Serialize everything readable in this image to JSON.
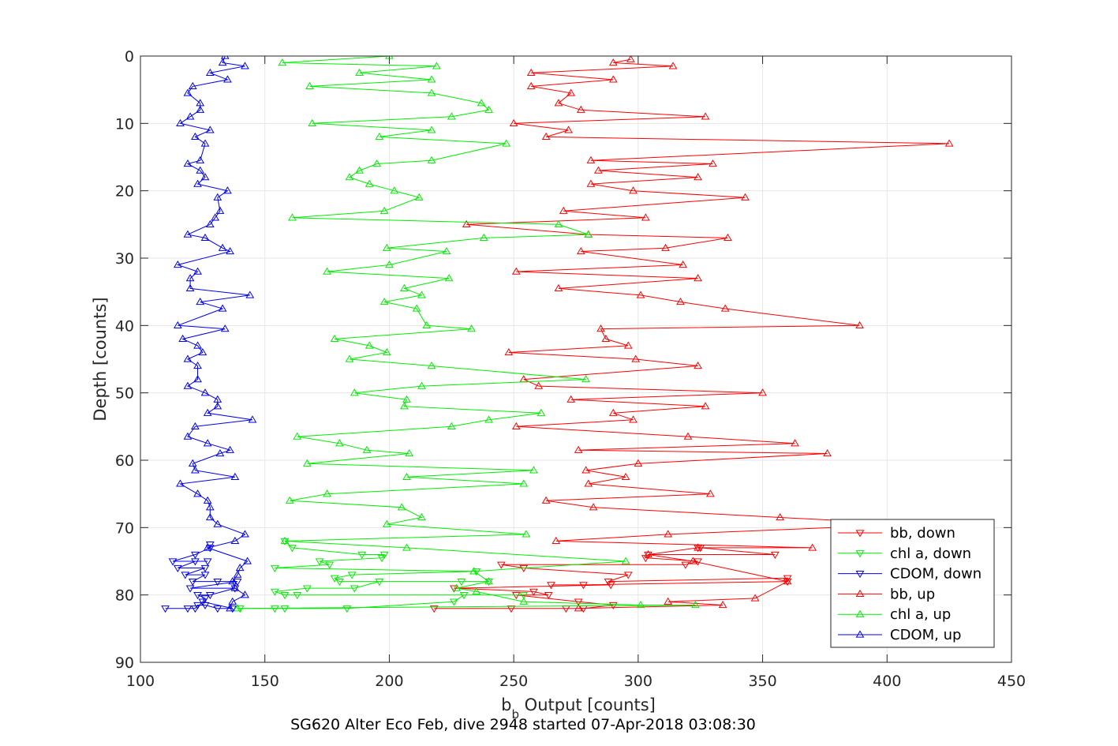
{
  "chart_data": {
    "type": "line",
    "xlabel_main": "b",
    "xlabel_sub": "b",
    "xlabel_rest": " Output [counts]",
    "ylabel": "Depth [counts]",
    "footer": "SG620 Alter Eco Feb, dive 2948 started 07-Apr-2018 03:08:30",
    "xlim": [
      100,
      450
    ],
    "ylim": [
      0,
      90
    ],
    "y_reversed": true,
    "grid": true,
    "legend_position": "lower-right",
    "x_ticks": [
      "100",
      "150",
      "200",
      "250",
      "300",
      "350",
      "400",
      "450"
    ],
    "y_ticks": [
      "0",
      "10",
      "20",
      "30",
      "40",
      "50",
      "60",
      "70",
      "80",
      "90"
    ],
    "series": [
      {
        "name": "bb, down",
        "color": "#ff0000",
        "marker": "triangle-down",
        "points": [
          [
            218,
            82
          ],
          [
            249,
            82
          ],
          [
            271,
            82
          ],
          [
            278,
            82
          ],
          [
            290,
            81.5
          ],
          [
            276,
            81
          ],
          [
            251,
            80
          ],
          [
            264,
            80
          ],
          [
            258,
            79.5
          ],
          [
            226,
            79
          ],
          [
            289,
            78.5
          ],
          [
            265,
            78.5
          ],
          [
            278,
            78.5
          ],
          [
            360,
            78
          ],
          [
            360,
            77.5
          ],
          [
            288,
            78
          ],
          [
            296,
            77
          ],
          [
            254,
            76
          ],
          [
            245,
            75.5
          ],
          [
            319,
            75.5
          ],
          [
            324,
            75
          ],
          [
            303,
            74.5
          ],
          [
            304,
            74
          ],
          [
            355,
            74
          ],
          [
            325,
            73
          ],
          [
            324,
            73
          ]
        ]
      },
      {
        "name": "chl a, down",
        "color": "#00ee00",
        "marker": "triangle-down",
        "points": [
          [
            140,
            82
          ],
          [
            154,
            82
          ],
          [
            158,
            82
          ],
          [
            183,
            82
          ],
          [
            226,
            81
          ],
          [
            230,
            80
          ],
          [
            254,
            80
          ],
          [
            163,
            80
          ],
          [
            158,
            80
          ],
          [
            154,
            79.5
          ],
          [
            167,
            79
          ],
          [
            186,
            79
          ],
          [
            196,
            78
          ],
          [
            229,
            78
          ],
          [
            240,
            78
          ],
          [
            180,
            78
          ],
          [
            178,
            77.5
          ],
          [
            185,
            77
          ],
          [
            235,
            76.5
          ],
          [
            154,
            76
          ],
          [
            176,
            75.5
          ],
          [
            172,
            75
          ],
          [
            197,
            74.5
          ],
          [
            198,
            74
          ],
          [
            189,
            74
          ],
          [
            161,
            73
          ],
          [
            158,
            72
          ]
        ]
      },
      {
        "name": "CDOM, down",
        "color": "#0000ee",
        "marker": "triangle-down",
        "points": [
          [
            110,
            82
          ],
          [
            119,
            82
          ],
          [
            122,
            82
          ],
          [
            123,
            81.5
          ],
          [
            126,
            81.5
          ],
          [
            131,
            82
          ],
          [
            137,
            82
          ],
          [
            125,
            81
          ],
          [
            126,
            80.5
          ],
          [
            123,
            80
          ],
          [
            128,
            80
          ],
          [
            138,
            79
          ],
          [
            120,
            79
          ],
          [
            139,
            78
          ],
          [
            131,
            78
          ],
          [
            121,
            78
          ],
          [
            126,
            77
          ],
          [
            118,
            77
          ],
          [
            126,
            76
          ],
          [
            115,
            76
          ],
          [
            122,
            75
          ],
          [
            127,
            75
          ],
          [
            113,
            75
          ],
          [
            122,
            74
          ],
          [
            128,
            73
          ],
          [
            128,
            72.5
          ]
        ]
      },
      {
        "name": "bb, up",
        "color": "#ff0000",
        "marker": "triangle-up",
        "points": [
          [
            297,
            0.5
          ],
          [
            290,
            1
          ],
          [
            314,
            1.5
          ],
          [
            257,
            2.5
          ],
          [
            290,
            3.5
          ],
          [
            257,
            4.5
          ],
          [
            273,
            5.5
          ],
          [
            268,
            7
          ],
          [
            277,
            8
          ],
          [
            327,
            9
          ],
          [
            250,
            10
          ],
          [
            272,
            11
          ],
          [
            263,
            12
          ],
          [
            425,
            13
          ],
          [
            281,
            15.5
          ],
          [
            330,
            16
          ],
          [
            284,
            17
          ],
          [
            324,
            18
          ],
          [
            281,
            19
          ],
          [
            298,
            20
          ],
          [
            343,
            21
          ],
          [
            270,
            23
          ],
          [
            303,
            24
          ],
          [
            231,
            25
          ],
          [
            280,
            26.5
          ],
          [
            336,
            27
          ],
          [
            311,
            28.5
          ],
          [
            277,
            29
          ],
          [
            318,
            31
          ],
          [
            251,
            32
          ],
          [
            324,
            33
          ],
          [
            268,
            34.5
          ],
          [
            301,
            35.5
          ],
          [
            317,
            36.5
          ],
          [
            335,
            37.5
          ],
          [
            389,
            40
          ],
          [
            285,
            40.5
          ],
          [
            287,
            42
          ],
          [
            296,
            43
          ],
          [
            248,
            44
          ],
          [
            299,
            45
          ],
          [
            324,
            46
          ],
          [
            254,
            48
          ],
          [
            260,
            49
          ],
          [
            350,
            50
          ],
          [
            273,
            51
          ],
          [
            327,
            52
          ],
          [
            290,
            53
          ],
          [
            298,
            54
          ],
          [
            251,
            55
          ],
          [
            320,
            56.5
          ],
          [
            363,
            57.5
          ],
          [
            276,
            58.5
          ],
          [
            376,
            59
          ],
          [
            300,
            60.5
          ],
          [
            279,
            61.5
          ],
          [
            295,
            62.5
          ],
          [
            280,
            63.5
          ],
          [
            329,
            65
          ],
          [
            263,
            66
          ],
          [
            282,
            67
          ],
          [
            357,
            68.5
          ],
          [
            410,
            69.5
          ],
          [
            312,
            71
          ],
          [
            267,
            72
          ],
          [
            370,
            73
          ],
          [
            324,
            73
          ],
          [
            304,
            74
          ],
          [
            322,
            75
          ],
          [
            360,
            78
          ],
          [
            347,
            80.5
          ],
          [
            312,
            81
          ],
          [
            334,
            81.5
          ],
          [
            276,
            82
          ]
        ]
      },
      {
        "name": "chl a, up",
        "color": "#00ee00",
        "marker": "triangle-up",
        "points": [
          [
            200,
            0
          ],
          [
            157,
            1
          ],
          [
            219,
            1.5
          ],
          [
            188,
            2.5
          ],
          [
            217,
            3.5
          ],
          [
            168,
            4.5
          ],
          [
            217,
            5.5
          ],
          [
            237,
            7
          ],
          [
            240,
            8
          ],
          [
            225,
            9
          ],
          [
            169,
            10
          ],
          [
            217,
            11
          ],
          [
            196,
            12
          ],
          [
            247,
            13
          ],
          [
            217,
            15.5
          ],
          [
            195,
            16
          ],
          [
            188,
            17
          ],
          [
            184,
            18
          ],
          [
            192,
            19
          ],
          [
            202,
            20
          ],
          [
            212,
            21
          ],
          [
            198,
            23
          ],
          [
            161,
            24
          ],
          [
            268,
            25
          ],
          [
            280,
            26.5
          ],
          [
            238,
            27
          ],
          [
            199,
            28.5
          ],
          [
            223,
            29
          ],
          [
            200,
            31
          ],
          [
            175,
            32
          ],
          [
            224,
            33
          ],
          [
            206,
            34.5
          ],
          [
            213,
            35.5
          ],
          [
            198,
            36.5
          ],
          [
            211,
            37.5
          ],
          [
            215,
            40
          ],
          [
            233,
            40.5
          ],
          [
            178,
            42
          ],
          [
            192,
            43
          ],
          [
            199,
            44
          ],
          [
            184,
            45
          ],
          [
            217,
            46
          ],
          [
            279,
            48
          ],
          [
            213,
            49
          ],
          [
            186,
            50
          ],
          [
            207,
            51
          ],
          [
            206,
            52
          ],
          [
            261,
            53
          ],
          [
            240,
            54
          ],
          [
            225,
            55
          ],
          [
            163,
            56.5
          ],
          [
            180,
            57.5
          ],
          [
            191,
            58.5
          ],
          [
            208,
            59
          ],
          [
            167,
            60.5
          ],
          [
            258,
            61.5
          ],
          [
            207,
            62.5
          ],
          [
            254,
            63.5
          ],
          [
            175,
            65
          ],
          [
            160,
            66
          ],
          [
            205,
            67
          ],
          [
            213,
            68.5
          ],
          [
            199,
            69.5
          ],
          [
            255,
            71
          ],
          [
            158,
            72
          ],
          [
            207,
            73
          ],
          [
            295,
            75
          ],
          [
            234,
            76.5
          ],
          [
            240,
            78
          ],
          [
            227,
            79
          ],
          [
            235,
            79.5
          ],
          [
            254,
            81
          ],
          [
            301,
            81.5
          ],
          [
            323,
            81.5
          ],
          [
            139,
            82
          ]
        ]
      },
      {
        "name": "CDOM, up",
        "color": "#0000ee",
        "marker": "triangle-up",
        "points": [
          [
            134,
            0
          ],
          [
            133,
            1
          ],
          [
            142,
            1.5
          ],
          [
            128,
            2.5
          ],
          [
            135,
            3.5
          ],
          [
            121,
            4.5
          ],
          [
            119,
            5.5
          ],
          [
            124,
            7
          ],
          [
            124,
            8
          ],
          [
            120,
            9
          ],
          [
            116,
            10
          ],
          [
            128,
            11
          ],
          [
            122,
            12
          ],
          [
            126,
            13
          ],
          [
            124,
            15.5
          ],
          [
            119,
            16
          ],
          [
            124,
            17
          ],
          [
            126,
            18
          ],
          [
            123,
            19
          ],
          [
            135,
            20
          ],
          [
            131,
            21
          ],
          [
            132,
            23
          ],
          [
            130,
            24
          ],
          [
            128,
            25
          ],
          [
            119,
            26.5
          ],
          [
            126,
            27
          ],
          [
            133,
            28.5
          ],
          [
            136,
            29
          ],
          [
            115,
            31
          ],
          [
            123,
            32
          ],
          [
            120,
            33
          ],
          [
            120,
            34.5
          ],
          [
            144,
            35.5
          ],
          [
            124,
            36.5
          ],
          [
            133,
            37.5
          ],
          [
            115,
            40
          ],
          [
            134,
            40.5
          ],
          [
            117,
            42
          ],
          [
            123,
            43
          ],
          [
            125,
            44
          ],
          [
            119,
            45
          ],
          [
            123,
            46
          ],
          [
            123,
            48
          ],
          [
            119,
            49
          ],
          [
            126,
            50
          ],
          [
            131,
            51
          ],
          [
            131,
            52
          ],
          [
            127,
            53
          ],
          [
            145,
            54
          ],
          [
            122,
            55
          ],
          [
            119,
            56.5
          ],
          [
            127,
            57.5
          ],
          [
            136,
            58.5
          ],
          [
            132,
            59
          ],
          [
            121,
            60.5
          ],
          [
            122,
            61.5
          ],
          [
            138,
            62.5
          ],
          [
            116,
            63.5
          ],
          [
            123,
            65
          ],
          [
            127,
            66
          ],
          [
            128,
            67
          ],
          [
            128,
            68.5
          ],
          [
            131,
            69.5
          ],
          [
            142,
            71
          ],
          [
            138,
            72
          ],
          [
            127,
            73
          ],
          [
            143,
            75
          ],
          [
            140,
            76
          ],
          [
            139,
            77
          ],
          [
            137,
            78
          ],
          [
            138,
            79
          ],
          [
            142,
            80
          ],
          [
            137,
            81
          ],
          [
            136,
            82
          ]
        ]
      }
    ]
  }
}
